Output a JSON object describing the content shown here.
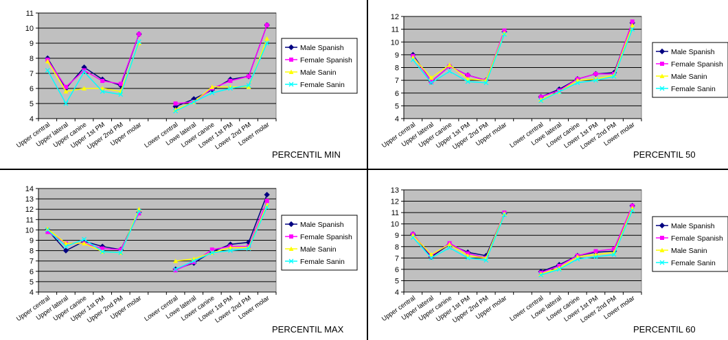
{
  "chart_data": [
    {
      "type": "line",
      "caption": "PERCENTIL MIN",
      "categories": [
        "Upper central",
        "Upper lateral",
        "Upper canine",
        "Upper 1st PM",
        "Upper 2nd PM",
        "Upper molar",
        "",
        "Lower central",
        "Lowe lateral",
        "Lower canine",
        "Lower 1st PM",
        "Lower 2nd PM",
        "Lower molar"
      ],
      "ylim": [
        4,
        11
      ],
      "yticks": [
        4,
        5,
        6,
        7,
        8,
        9,
        10,
        11
      ],
      "grid": true,
      "legend": "right",
      "series": [
        {
          "name": "Male Spanish",
          "values": [
            8.0,
            6.0,
            7.4,
            6.6,
            6.2,
            9.6,
            null,
            4.8,
            5.3,
            5.9,
            6.6,
            6.8,
            10.2
          ]
        },
        {
          "name": "Female Spanish",
          "values": [
            7.9,
            6.1,
            7.2,
            6.5,
            6.3,
            9.6,
            null,
            5.0,
            5.1,
            6.0,
            6.5,
            6.8,
            10.2
          ]
        },
        {
          "name": "Male Sanin",
          "values": [
            7.8,
            5.8,
            6.0,
            6.0,
            5.8,
            9.0,
            null,
            4.6,
            5.1,
            6.1,
            6.1,
            6.1,
            9.3
          ]
        },
        {
          "name": "Female Sanin",
          "values": [
            7.2,
            5.0,
            7.1,
            5.8,
            5.6,
            9.1,
            null,
            4.5,
            5.1,
            5.7,
            6.0,
            6.2,
            9.0
          ]
        }
      ]
    },
    {
      "type": "line",
      "caption": "PERCENTIL 50",
      "categories": [
        "Upper central",
        "Upper lateral",
        "Upper canine",
        "Upper 1st PM",
        "Upper 2nd PM",
        "Upper molar",
        "",
        "Lower central",
        "Lowe lateral",
        "Lower canine",
        "Lower 1st PM",
        "Lower 2nd PM",
        "Lower molar"
      ],
      "ylim": [
        4,
        12
      ],
      "yticks": [
        4,
        5,
        6,
        7,
        8,
        9,
        10,
        11,
        12
      ],
      "grid": true,
      "legend": "right",
      "series": [
        {
          "name": "Male Spanish",
          "values": [
            9.0,
            6.9,
            8.1,
            7.4,
            7.0,
            10.8,
            null,
            5.7,
            6.3,
            7.1,
            7.5,
            7.6,
            11.5
          ]
        },
        {
          "name": "Female Spanish",
          "values": [
            8.9,
            6.9,
            8.1,
            7.4,
            7.0,
            10.9,
            null,
            5.7,
            6.2,
            7.1,
            7.5,
            7.5,
            11.6
          ]
        },
        {
          "name": "Male Sanin",
          "values": [
            8.8,
            7.2,
            8.2,
            7.1,
            7.0,
            10.7,
            null,
            5.5,
            6.1,
            7.0,
            7.1,
            7.4,
            11.3
          ]
        },
        {
          "name": "Female Sanin",
          "values": [
            8.6,
            6.8,
            7.7,
            6.9,
            6.8,
            10.6,
            null,
            5.4,
            6.1,
            6.8,
            7.0,
            7.3,
            11.0
          ]
        }
      ]
    },
    {
      "type": "line",
      "caption": "PERCENTIL MAX",
      "categories": [
        "Upper central",
        "Upper lateral",
        "Upper canine",
        "Upper 1st PM",
        "Upper 2nd PM",
        "Upper molar",
        "",
        "Lower central",
        "Lowe lateral",
        "Lower canine",
        "Lower 1st PM",
        "Lower 2nd PM",
        "Lower molar"
      ],
      "ylim": [
        4,
        14
      ],
      "yticks": [
        4,
        5,
        6,
        7,
        8,
        9,
        10,
        11,
        12,
        13,
        14
      ],
      "grid": true,
      "legend": "right",
      "series": [
        {
          "name": "Male Spanish",
          "values": [
            10.0,
            8.0,
            8.9,
            8.4,
            8.1,
            11.7,
            null,
            6.2,
            6.8,
            7.9,
            8.6,
            8.8,
            13.4
          ]
        },
        {
          "name": "Female Spanish",
          "values": [
            9.8,
            8.7,
            8.7,
            8.2,
            8.1,
            11.6,
            null,
            6.1,
            6.9,
            8.1,
            8.4,
            8.4,
            12.8
          ]
        },
        {
          "name": "Male Sanin",
          "values": [
            10.1,
            8.7,
            8.7,
            7.9,
            7.8,
            12.0,
            null,
            7.0,
            7.2,
            7.8,
            8.3,
            8.3,
            12.4
          ]
        },
        {
          "name": "Female Sanin",
          "values": [
            10.0,
            8.4,
            9.1,
            7.9,
            7.8,
            11.8,
            null,
            6.2,
            7.0,
            7.8,
            8.0,
            8.2,
            12.2
          ]
        }
      ]
    },
    {
      "type": "line",
      "caption": "PERCENTIL 60",
      "categories": [
        "Upper central",
        "Upper lateral",
        "Upper canine",
        "Upper 1st PM",
        "Upper 2nd PM",
        "Upper molar",
        "",
        "Lower central",
        "Lowe lateral",
        "Lower canine",
        "Lower 1st PM",
        "Lower 2nd PM",
        "Lower molar"
      ],
      "ylim": [
        4,
        13
      ],
      "yticks": [
        4,
        5,
        6,
        7,
        8,
        9,
        10,
        11,
        12,
        13
      ],
      "grid": true,
      "legend": "right",
      "series": [
        {
          "name": "Male Spanish",
          "values": [
            9.1,
            7.1,
            8.2,
            7.5,
            7.2,
            10.9,
            null,
            5.8,
            6.4,
            7.2,
            7.5,
            7.6,
            11.6
          ]
        },
        {
          "name": "Female Spanish",
          "values": [
            9.1,
            7.2,
            8.3,
            7.4,
            7.0,
            11.0,
            null,
            5.7,
            6.3,
            7.2,
            7.6,
            7.8,
            11.6
          ]
        },
        {
          "name": "Male Sanin",
          "values": [
            9.0,
            7.3,
            8.2,
            7.2,
            7.0,
            10.9,
            null,
            5.6,
            6.1,
            7.1,
            7.3,
            7.5,
            11.4
          ]
        },
        {
          "name": "Female Sanin",
          "values": [
            8.8,
            7.0,
            7.9,
            7.0,
            6.8,
            10.8,
            null,
            5.5,
            6.0,
            6.9,
            7.1,
            7.3,
            11.2
          ]
        }
      ]
    }
  ],
  "style": {
    "series_colors": [
      "#000080",
      "#ff00ff",
      "#ffff00",
      "#00ffff"
    ],
    "series_markers": [
      "diamond",
      "square",
      "triangle",
      "x"
    ],
    "plot_background": "#c0c0c0",
    "gridline_color": "#000000"
  }
}
